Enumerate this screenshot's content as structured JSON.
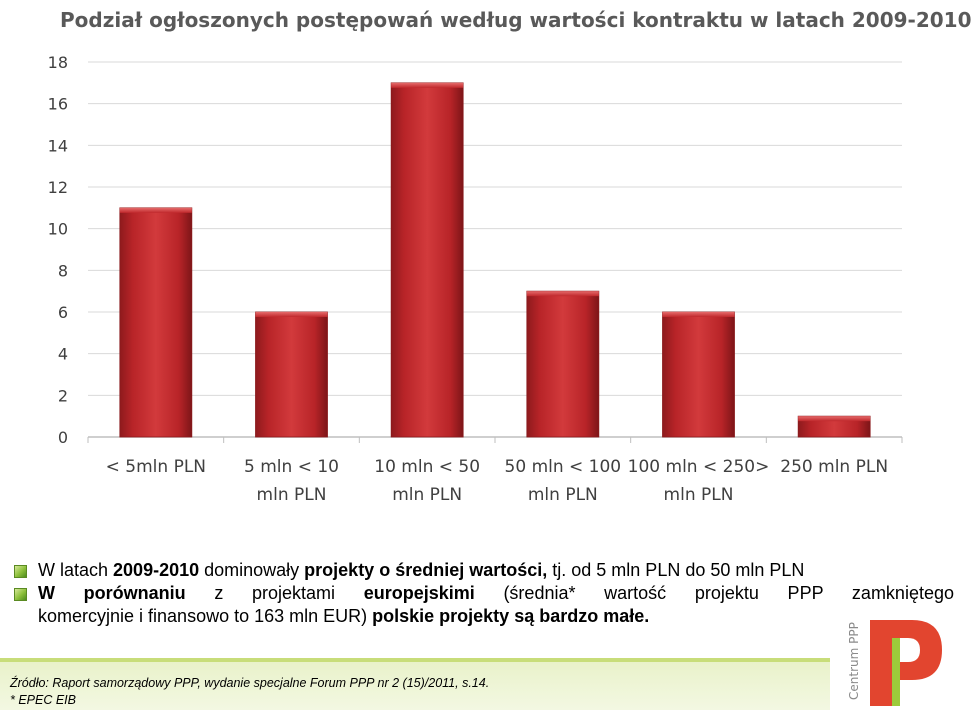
{
  "chart_data": {
    "type": "bar",
    "title": "Podział  ogłoszonych postępowań według wartości kontraktu w latach 2009-2010",
    "categories": [
      [
        "< 5mln PLN"
      ],
      [
        "5 mln < 10",
        "mln PLN"
      ],
      [
        "10 mln < 50",
        "mln PLN"
      ],
      [
        "50 mln < 100",
        "mln PLN"
      ],
      [
        "100 mln < 250>",
        "mln PLN"
      ],
      [
        "250 mln PLN"
      ]
    ],
    "values": [
      11,
      6,
      17,
      7,
      6,
      1
    ],
    "ylim": [
      0,
      18
    ],
    "yticks": [
      "0",
      "2",
      "4",
      "6",
      "8",
      "10",
      "12",
      "14",
      "16",
      "18"
    ],
    "grid": true,
    "bar_color": "#c0282c",
    "xlabel": "",
    "ylabel": ""
  },
  "bullets": {
    "b1": {
      "pre": "W latach ",
      "years": "2009-2010",
      "mid": " dominowały ",
      "strong": "projekty o średniej wartości,",
      "post": " tj. od 5 mln PLN do 50 mln PLN"
    },
    "b2": {
      "line1_bold": "W porównaniu",
      "line1_rest": " z projektami ",
      "line1_bold2": "europejskimi",
      "line1_tail": " (średnia* wartość projektu PPP zamkniętego",
      "line2": "komercyjnie i finansowo to 163 mln EUR) ",
      "line2_bold": "polskie projekty są bardzo małe."
    }
  },
  "footer": {
    "source": "Źródło: Raport samorządowy PPP, wydanie specjalne Forum PPP nr 2 (15)/2011, s.14.",
    "note": "* EPEC EIB"
  },
  "logo": {
    "text": "Centrum PPP",
    "letter": "P",
    "colors": {
      "primary": "#e2452f",
      "secondary": "#9ccb3b"
    }
  }
}
